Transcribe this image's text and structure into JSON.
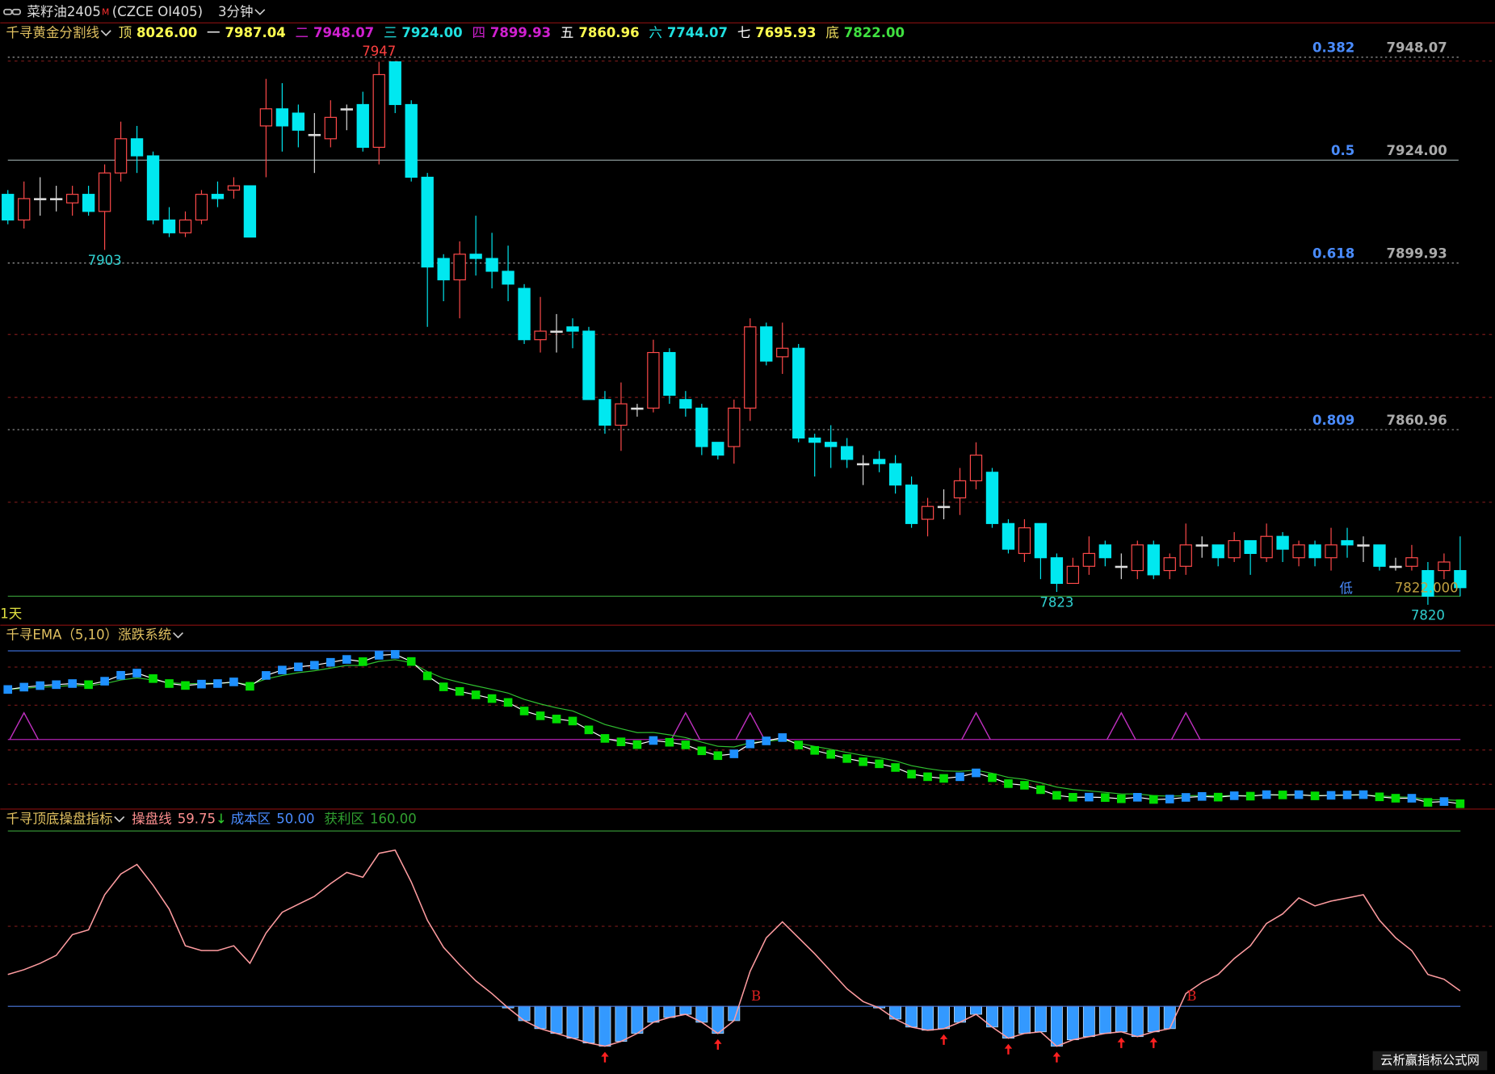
{
  "header": {
    "instrument": "菜籽油2405",
    "flag": "M",
    "code": "(CZCE OI405)",
    "period": "3分钟"
  },
  "price_panel": {
    "indicator": "千寻黄金分割线",
    "levels": [
      {
        "name": "顶",
        "value": {
          "value": 8026,
          "label": "8026.00"
        },
        "name_color": "#f0e060",
        "value_color": "#ffff50"
      },
      {
        "name": "一",
        "value": 7987.04,
        "name_color": "#ffffff",
        "value_color": "#ffff50"
      },
      {
        "name": "二",
        "value": 7948.07,
        "name_color": "#d020d0",
        "value_color": "#d020d0"
      },
      {
        "name": "三",
        "value": {
          "value": 7924,
          "label": "7924.00"
        },
        "name_color": "#20e0e0",
        "value_color": "#20e0e0"
      },
      {
        "name": "四",
        "value": 7899.93,
        "name_color": "#d020d0",
        "value_color": "#d020d0"
      },
      {
        "name": "五",
        "value": 7860.96,
        "name_color": "#ffffff",
        "value_color": "#ffff50"
      },
      {
        "name": "六",
        "value": 7744.07,
        "name_color": "#20e0e0",
        "value_color": "#20e0e0"
      },
      {
        "name": "七",
        "value": 7695.93,
        "name_color": "#ffffff",
        "value_color": "#ffff50"
      },
      {
        "name": "底",
        "value": {
          "value": 7822,
          "label": "7822.00"
        },
        "name_color": "#f0e060",
        "value_color": "#40e040"
      }
    ],
    "fib": [
      {
        "ratio": 0.382,
        "value": 7948.07,
        "style": "dashed"
      },
      {
        "ratio": 0.5,
        "value": {
          "value": 7924,
          "label": "7924.00"
        },
        "style": "solid"
      },
      {
        "ratio": 0.618,
        "value": 7899.93,
        "style": "dashed"
      },
      {
        "ratio": 0.809,
        "value": 7860.96,
        "style": "dashed"
      }
    ],
    "ylim": [
      7818.8,
      7951.2
    ],
    "candles": {
      "up_color": "#ff4a4a",
      "down_color": "#00e8f0",
      "open": [
        7916,
        7910,
        7915,
        7915,
        7914,
        7916,
        7912,
        7921,
        7929,
        7925,
        7910,
        7907,
        7910,
        7916,
        7917,
        7918,
        7932,
        7936,
        7935,
        7930,
        7929,
        7936,
        7937,
        7927,
        7947,
        7937,
        7920,
        7901,
        7896,
        7902,
        7901,
        7898,
        7894,
        7882,
        7884,
        7885,
        7884,
        7868,
        7862,
        7866,
        7866,
        7879,
        7868,
        7866,
        7858,
        7857,
        7866,
        7885,
        7878,
        7880,
        7859,
        7858,
        7857,
        7853,
        7854,
        7853,
        7848,
        7840,
        7843,
        7845,
        7849,
        7851,
        7839,
        7832,
        7839,
        7831,
        7825,
        7829,
        7834,
        7829,
        7828,
        7834,
        7828,
        7829,
        7834,
        7834,
        7831,
        7835,
        7831,
        7836,
        7831,
        7834,
        7831,
        7835,
        7834,
        7834,
        7829,
        7829,
        7828,
        7828,
        7828
      ],
      "high": [
        7917,
        7919,
        7920,
        7918,
        7918,
        7918,
        7923,
        7933,
        7932,
        7926,
        7913,
        7912,
        7917,
        7919,
        7920,
        7918,
        7943,
        7942,
        7937,
        7935,
        7938,
        7937,
        7940,
        7947,
        7947,
        7938,
        7921,
        7902,
        7905,
        7911,
        7907,
        7904,
        7895,
        7892,
        7888,
        7887,
        7885,
        7870,
        7872,
        7867,
        7882,
        7880,
        7870,
        7867,
        7858,
        7868,
        7887,
        7886,
        7886,
        7881,
        7860,
        7862,
        7859,
        7855,
        7856,
        7855,
        7850,
        7845,
        7847,
        7852,
        7858,
        7852,
        7840,
        7840,
        7839,
        7832,
        7831,
        7836,
        7835,
        7832,
        7835,
        7835,
        7832,
        7839,
        7836,
        7834,
        7837,
        7835,
        7839,
        7837,
        7835,
        7835,
        7838,
        7838,
        7836,
        7834,
        7831,
        7834,
        7830,
        7832,
        7836
      ],
      "low": [
        7909,
        7908,
        7911,
        7912,
        7911,
        7911,
        7903,
        7919,
        7921,
        7909,
        7906,
        7906,
        7909,
        7913,
        7915,
        7906,
        7920,
        7926,
        7927,
        7921,
        7927,
        7931,
        7926,
        7923,
        7935,
        7919,
        7885,
        7891,
        7887,
        7897,
        7894,
        7891,
        7881,
        7879,
        7879,
        7880,
        7868,
        7860,
        7856,
        7864,
        7865,
        7867,
        7864,
        7855,
        7854,
        7853,
        7863,
        7876,
        7874,
        7858,
        7850,
        7852,
        7852,
        7848,
        7851,
        7846,
        7838,
        7836,
        7840,
        7841,
        7847,
        7838,
        7832,
        7830,
        7826,
        7823,
        7825,
        7827,
        7829,
        7826,
        7826,
        7826,
        7826,
        7827,
        7831,
        7829,
        7830,
        7827,
        7830,
        7830,
        7829,
        7829,
        7828,
        7831,
        7830,
        7828,
        7828,
        7828,
        7820,
        7826,
        7822
      ],
      "close": [
        7910,
        7915,
        7915,
        7915,
        7916,
        7912,
        7921,
        7929,
        7925,
        7910,
        7907,
        7910,
        7916,
        7915,
        7918,
        7906,
        7936,
        7932,
        7931,
        7930,
        7934,
        7936,
        7927,
        7944,
        7937,
        7920,
        7899,
        7896,
        7902,
        7901,
        7898,
        7895,
        7882,
        7884,
        7884,
        7884,
        7868,
        7862,
        7867,
        7866,
        7879,
        7869,
        7866,
        7857,
        7855,
        7866,
        7885,
        7877,
        7880,
        7859,
        7858,
        7857,
        7854,
        7853,
        7853,
        7848,
        7839,
        7843,
        7843,
        7849,
        7855,
        7839,
        7833,
        7838,
        7831,
        7825,
        7829,
        7832,
        7831,
        7829,
        7834,
        7827,
        7831,
        7834,
        7834,
        7831,
        7835,
        7832,
        7836,
        7833,
        7834,
        7831,
        7834,
        7834,
        7834,
        7829,
        7829,
        7831,
        7822,
        7830,
        7824
      ]
    },
    "extreme_labels": [
      {
        "index": 23,
        "value": 7947,
        "position": "high",
        "color": "#ff4040"
      },
      {
        "index": 6,
        "value": 7903,
        "position": "low",
        "color": "#30d0d0"
      },
      {
        "index": 65,
        "value": 7823,
        "position": "low",
        "color": "#30d0d0"
      },
      {
        "index": 88,
        "value": 7820,
        "position": "low",
        "color": "#30d0d0"
      }
    ],
    "low_marker": "低",
    "bottom_label": {
      "value": 7822,
      "label": "7822.000"
    },
    "period_label": "1天"
  },
  "ema_panel": {
    "title": "千寻EMA（5,10）涨跌系统",
    "ylim": [
      7826,
      7938
    ],
    "rise_color": "#1e90ff",
    "fall_color": "#00dd00",
    "ema5": [
      7910,
      7911.7,
      7912.8,
      7913.5,
      7914.3,
      7913.5,
      7916,
      7920.3,
      7921.9,
      7917.9,
      7914.3,
      7912.9,
      7913.9,
      7914.3,
      7915.5,
      7912.3,
      7920.2,
      7924.1,
      7926.4,
      7927.6,
      7929.7,
      7931.8,
      7930.2,
      7934.8,
      7935.5,
      7930.3,
      7919.9,
      7911.9,
      7908.6,
      7906.1,
      7903.4,
      7900.6,
      7894.4,
      7890.9,
      7888.6,
      7887.1,
      7880.7,
      7874.5,
      7872,
      7870,
      7873,
      7871.7,
      7869.8,
      7865.5,
      7862,
      7863.3,
      7870.5,
      7872.7,
      7875.1,
      7869.7,
      7865.8,
      7862.9,
      7859.9,
      7857.6,
      7856.1,
      7853.4,
      7848.6,
      7846.7,
      7845.5,
      7846.7,
      7849.5,
      7846,
      7841.7,
      7840.5,
      7837.3,
      7833.2,
      7831.8,
      7831.9,
      7831.6,
      7830.7,
      7831.8,
      7830.2,
      7830.5,
      7831.7,
      7832.4,
      7831.9,
      7832.9,
      7832.6,
      7833.7,
      7833.5,
      7833.7,
      7832.8,
      7833.2,
      7833.5,
      7833.7,
      7832.1,
      7831.1,
      7831.1,
      7828.1,
      7828.7,
      7827.1
    ],
    "ema10": [
      7910,
      7910.9,
      7911.6,
      7912.2,
      7912.9,
      7912.7,
      7914.2,
      7916.9,
      7918.4,
      7916.9,
      7915,
      7914.1,
      7914.4,
      7914.5,
      7915.1,
      7913.5,
      7917.6,
      7920.2,
      7922.2,
      7923.6,
      7925.5,
      7927.5,
      7927.4,
      7930.4,
      7931.6,
      7929.5,
      7923,
      7918.1,
      7915.2,
      7912.6,
      7910.1,
      7907.4,
      7902.8,
      7899.5,
      7896.7,
      7894.4,
      7889.6,
      7884.6,
      7881.5,
      7878.7,
      7878.8,
      7877.1,
      7875.1,
      7871.8,
      7868.8,
      7868.3,
      7871.3,
      7872.3,
      7873.7,
      7871,
      7868.7,
      7866.6,
      7864.3,
      7862.2,
      7860.5,
      7858.2,
      7854.7,
      7852.6,
      7850.9,
      7850.6,
      7851.4,
      7849.2,
      7846.2,
      7844.8,
      7842.3,
      7839.2,
      7837.4,
      7836.4,
      7835.4,
      7834.2,
      7834.2,
      7833,
      7832.6,
      7832.9,
      7833.1,
      7832.7,
      7833.1,
      7832.9,
      7833.5,
      7833.4,
      7833.5,
      7833,
      7833.2,
      7833.3,
      7833.4,
      7832.8,
      7832.1,
      7831.8,
      7830,
      7830,
      7829.4
    ],
    "signal_index": [
      1,
      42,
      46,
      60,
      69,
      73
    ]
  },
  "indicator_panel": {
    "title": "千寻顶底操盘指标",
    "line_name": "操盘线",
    "line_value": 59.75,
    "trend": "↓",
    "cost_name": "成本区",
    "cost": {
      "value": 50,
      "label": "50.00"
    },
    "profit_name": "获利区",
    "profit": {
      "value": 160,
      "label": "160.00"
    },
    "values": [
      70,
      73,
      77,
      82,
      95,
      98,
      120,
      133,
      139,
      126,
      111,
      88,
      85,
      85,
      88,
      77,
      96,
      109,
      114,
      119,
      127,
      134,
      131,
      146,
      148,
      128,
      104,
      87,
      76,
      66,
      58,
      49,
      41,
      36,
      33,
      30,
      27,
      25,
      28,
      33,
      40,
      43,
      45,
      40,
      33,
      41,
      72,
      93,
      103,
      93,
      83,
      72,
      61,
      53,
      49,
      42,
      37,
      35,
      36,
      40,
      45,
      37,
      30,
      33,
      34,
      25,
      29,
      31,
      33,
      34,
      31,
      34,
      36,
      58,
      65,
      70,
      80,
      88,
      102,
      108,
      118,
      113,
      116,
      118,
      120,
      104,
      93,
      85,
      70,
      67,
      59.75
    ],
    "buy_points": [
      {
        "index": 46,
        "label": "B"
      },
      {
        "index": 73,
        "label": "B"
      }
    ],
    "arrow_index": [
      37,
      44,
      58,
      62,
      65,
      69,
      71
    ]
  },
  "watermark": "云析赢指标公式网"
}
